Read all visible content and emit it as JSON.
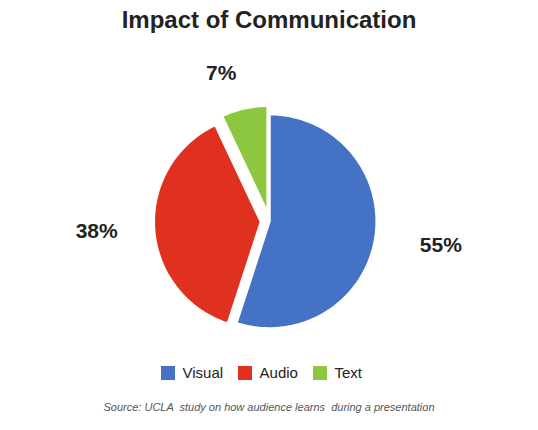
{
  "chart_data": {
    "type": "pie",
    "title": "Impact of Communication",
    "categories": [
      "Visual",
      "Audio",
      "Text"
    ],
    "values": [
      55,
      38,
      7
    ],
    "value_labels": [
      "55%",
      "38%",
      "7%"
    ],
    "colors": [
      "#4472C4",
      "#E03020",
      "#8DC63F"
    ],
    "data_labels": true,
    "legend": "bottom",
    "annotations": [
      "Source: UCLA  study on how audience learns  during a presentation"
    ]
  }
}
